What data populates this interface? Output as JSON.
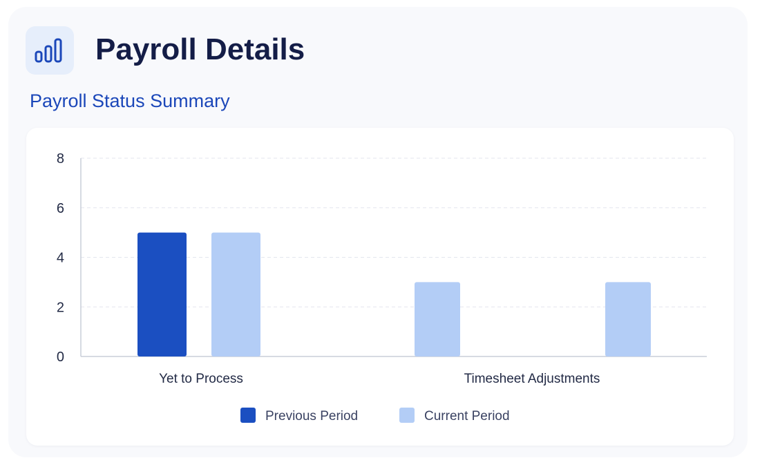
{
  "header": {
    "title": "Payroll Details",
    "icon": "bar-chart-icon",
    "icon_color": "#1b47b9",
    "icon_bg": "#e6eefb"
  },
  "section": {
    "title": "Payroll Status Summary"
  },
  "chart_data": {
    "type": "bar",
    "categories": [
      "Yet to Process",
      "Timesheet Adjustments"
    ],
    "series": [
      {
        "name": "Previous Period",
        "color": "#1b4fc1",
        "values": [
          5,
          0
        ]
      },
      {
        "name": "Current Period",
        "color": "#b3cdf6",
        "values": [
          5,
          3
        ]
      }
    ],
    "extra_bars": [
      {
        "category": "Timesheet Adjustments",
        "value": 3,
        "color": "#b3cdf6"
      }
    ],
    "yticks": [
      0,
      2,
      4,
      6,
      8
    ],
    "ylim": [
      0,
      8
    ],
    "grid": true,
    "legend": "bottom-center",
    "xlabel": "",
    "ylabel": ""
  }
}
